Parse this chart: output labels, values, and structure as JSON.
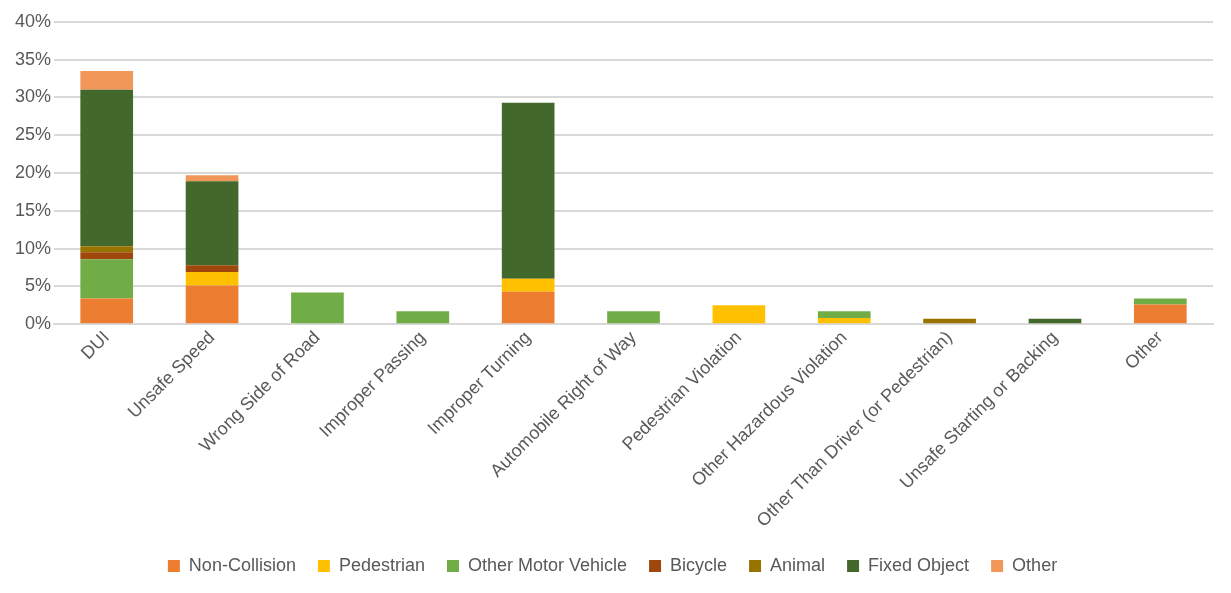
{
  "chart_data": {
    "type": "bar",
    "stacked": true,
    "categories": [
      "DUI",
      "Unsafe Speed",
      "Wrong Side of Road",
      "Improper Passing",
      "Improper Turning",
      "Automobile Right of Way",
      "Pedestrian Violation",
      "Other Hazardous Violation",
      "Other Than Driver (or Pedestrian)",
      "Unsafe Starting or Backing",
      "Other"
    ],
    "series": [
      {
        "name": "Non-Collision",
        "color": "#ed7d31",
        "values": [
          3.4,
          5.1,
          null,
          null,
          4.3,
          null,
          null,
          null,
          null,
          null,
          2.6
        ]
      },
      {
        "name": "Pedestrian",
        "color": "#ffc000",
        "values": [
          null,
          1.8,
          null,
          null,
          1.7,
          null,
          2.5,
          0.8,
          null,
          null,
          null
        ]
      },
      {
        "name": "Other Motor Vehicle",
        "color": "#70ad47",
        "values": [
          5.2,
          null,
          4.2,
          1.7,
          null,
          1.7,
          null,
          0.9,
          null,
          null,
          0.8
        ]
      },
      {
        "name": "Bicycle",
        "color": "#9e480e",
        "values": [
          0.9,
          0.9,
          null,
          null,
          null,
          null,
          null,
          null,
          null,
          null,
          null
        ]
      },
      {
        "name": "Animal",
        "color": "#997300",
        "values": [
          0.8,
          null,
          null,
          null,
          null,
          null,
          null,
          null,
          0.7,
          null,
          null
        ]
      },
      {
        "name": "Fixed Object",
        "color": "#43682b",
        "values": [
          20.7,
          11.1,
          null,
          null,
          23.3,
          null,
          null,
          null,
          null,
          0.7,
          null
        ]
      },
      {
        "name": "Other",
        "color": "#f1975a",
        "values": [
          2.5,
          0.8,
          null,
          null,
          null,
          null,
          null,
          null,
          null,
          null,
          null
        ]
      }
    ],
    "ylim": [
      0,
      40
    ],
    "yticks": [
      {
        "value": 0,
        "label": "0%"
      },
      {
        "value": 5,
        "label": "5%"
      },
      {
        "value": 10,
        "label": "10%"
      },
      {
        "value": 15,
        "label": "15%"
      },
      {
        "value": 20,
        "label": "20%"
      },
      {
        "value": 25,
        "label": "25%"
      },
      {
        "value": 30,
        "label": "30%"
      },
      {
        "value": 35,
        "label": "35%"
      },
      {
        "value": 40,
        "label": "40%"
      }
    ],
    "grid": "y",
    "legend": "bottom"
  }
}
